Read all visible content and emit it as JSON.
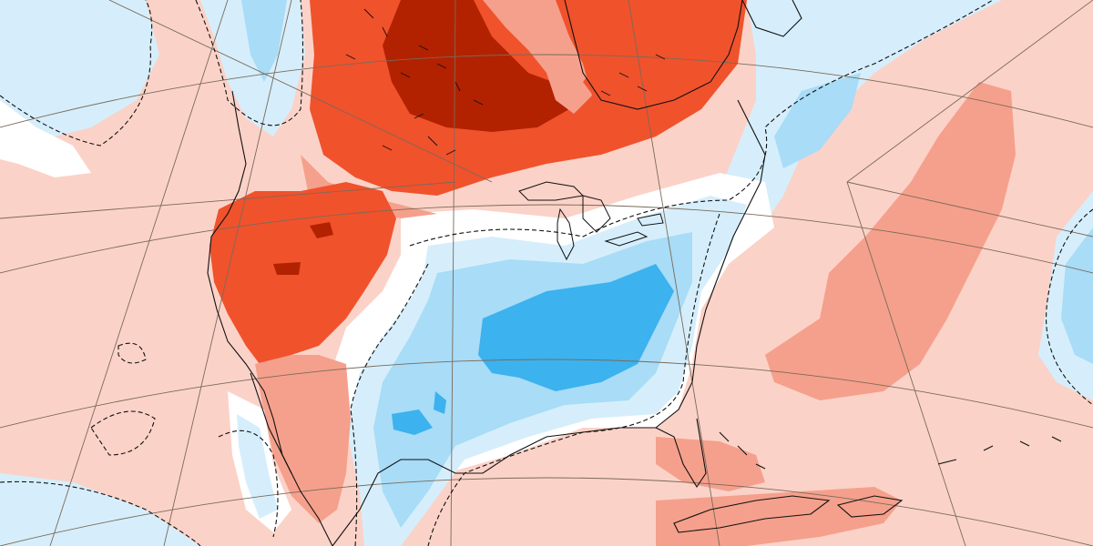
{
  "map": {
    "type": "temperature-anomaly",
    "palette": {
      "strong_warm": "#b22200",
      "warm": "#f0522c",
      "mild_warm": "#f5a08c",
      "weak_warm": "#fbd2c8",
      "neutral": "#ffffff",
      "weak_cool": "#d6eefb",
      "cool": "#a8dcf7",
      "strong_cool": "#3cb2ee",
      "coastline": "#111111",
      "graticule": "#7a6a5a",
      "zero_contour": "#111111"
    },
    "features": [
      "north-america-coastlines",
      "great-lakes",
      "caribbean-islands",
      "graticule-lines",
      "zero-anomaly-dashed-contour"
    ]
  }
}
